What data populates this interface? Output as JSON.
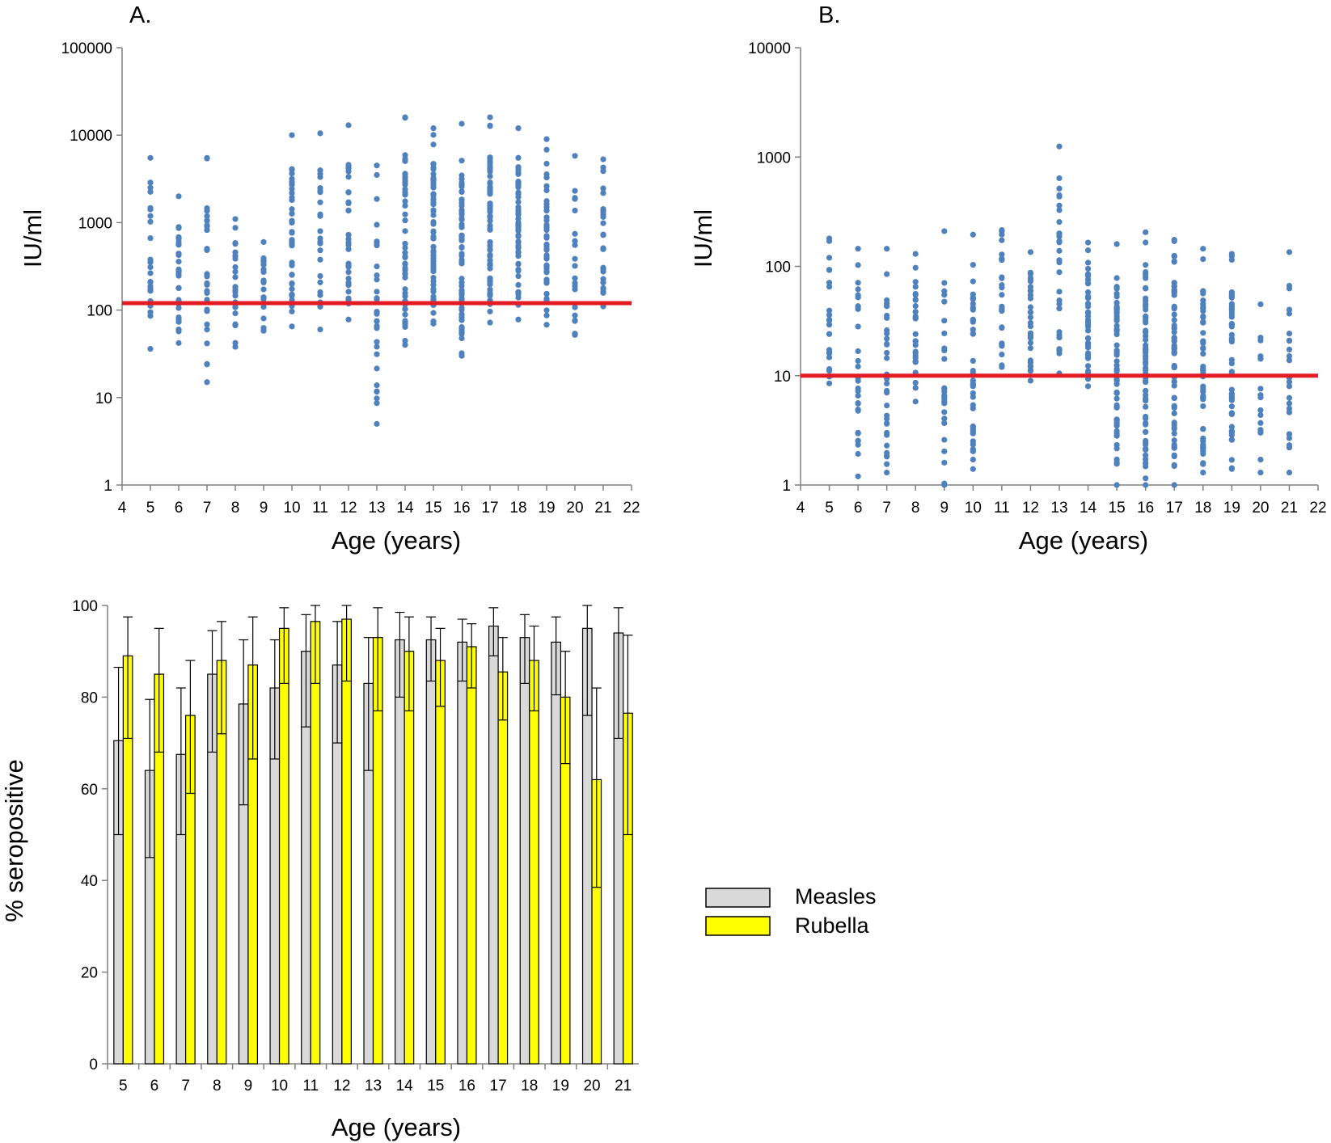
{
  "colors": {
    "point": "#4f81bd",
    "threshold": "#e31b23",
    "measles": "#d9d9d9",
    "rubella": "#ffff00",
    "axis": "#808080"
  },
  "chart_data": [
    {
      "id": "A",
      "panel_label": "A.",
      "type": "scatter",
      "y_scale": "log",
      "ylim": [
        1,
        100000
      ],
      "xlim": [
        4,
        22
      ],
      "xlabel": "Age (years)",
      "ylabel": "IU/ml",
      "x_ticks": [
        "4",
        "5",
        "6",
        "7",
        "8",
        "9",
        "10",
        "11",
        "12",
        "13",
        "14",
        "15",
        "16",
        "17",
        "18",
        "19",
        "20",
        "21",
        "22"
      ],
      "y_ticks": [
        "1",
        "10",
        "100",
        "1000",
        "10000",
        "100000"
      ],
      "threshold": 120,
      "groups": [
        {
          "age": 5,
          "min": 36,
          "max": 5500,
          "n": 24
        },
        {
          "age": 6,
          "min": 42,
          "max": 2000,
          "n": 30
        },
        {
          "age": 7,
          "min": 15,
          "max": 5500,
          "n": 32
        },
        {
          "age": 8,
          "min": 38,
          "max": 1100,
          "n": 26
        },
        {
          "age": 9,
          "min": 58,
          "max": 600,
          "n": 20
        },
        {
          "age": 10,
          "min": 65,
          "max": 10000,
          "n": 38
        },
        {
          "age": 11,
          "min": 60,
          "max": 10500,
          "n": 26
        },
        {
          "age": 12,
          "min": 78,
          "max": 13000,
          "n": 30
        },
        {
          "age": 13,
          "min": 5,
          "max": 4500,
          "n": 32
        },
        {
          "age": 14,
          "min": 40,
          "max": 16000,
          "n": 48
        },
        {
          "age": 15,
          "min": 70,
          "max": 12000,
          "n": 60
        },
        {
          "age": 16,
          "min": 30,
          "max": 13500,
          "n": 68
        },
        {
          "age": 17,
          "min": 72,
          "max": 16000,
          "n": 70
        },
        {
          "age": 18,
          "min": 78,
          "max": 12000,
          "n": 56
        },
        {
          "age": 19,
          "min": 68,
          "max": 9000,
          "n": 50
        },
        {
          "age": 20,
          "min": 52,
          "max": 5800,
          "n": 20
        },
        {
          "age": 21,
          "min": 110,
          "max": 5300,
          "n": 26
        }
      ]
    },
    {
      "id": "B",
      "panel_label": "B.",
      "type": "scatter",
      "y_scale": "log",
      "ylim": [
        1,
        10000
      ],
      "xlim": [
        4,
        22
      ],
      "xlabel": "Age (years)",
      "ylabel": "IU/ml",
      "x_ticks": [
        "4",
        "5",
        "6",
        "7",
        "8",
        "9",
        "10",
        "11",
        "12",
        "13",
        "14",
        "15",
        "16",
        "17",
        "18",
        "19",
        "20",
        "21",
        "22"
      ],
      "y_ticks": [
        "1",
        "10",
        "100",
        "1000",
        "10000"
      ],
      "threshold": 10,
      "groups": [
        {
          "age": 5,
          "min": 8.5,
          "max": 180,
          "n": 24
        },
        {
          "age": 6,
          "min": 1.2,
          "max": 145,
          "n": 30
        },
        {
          "age": 7,
          "min": 1.3,
          "max": 145,
          "n": 34
        },
        {
          "age": 8,
          "min": 5.8,
          "max": 130,
          "n": 28
        },
        {
          "age": 9,
          "min": 1.0,
          "max": 210,
          "n": 26
        },
        {
          "age": 10,
          "min": 1.4,
          "max": 195,
          "n": 40
        },
        {
          "age": 11,
          "min": 12,
          "max": 215,
          "n": 26
        },
        {
          "age": 12,
          "min": 9,
          "max": 135,
          "n": 32
        },
        {
          "age": 13,
          "min": 10.5,
          "max": 1250,
          "n": 30
        },
        {
          "age": 14,
          "min": 8,
          "max": 165,
          "n": 42
        },
        {
          "age": 15,
          "min": 1.0,
          "max": 160,
          "n": 62
        },
        {
          "age": 16,
          "min": 1.0,
          "max": 205,
          "n": 72
        },
        {
          "age": 17,
          "min": 1.0,
          "max": 175,
          "n": 70
        },
        {
          "age": 18,
          "min": 1.3,
          "max": 145,
          "n": 52
        },
        {
          "age": 19,
          "min": 1.4,
          "max": 130,
          "n": 46
        },
        {
          "age": 20,
          "min": 1.3,
          "max": 45,
          "n": 16
        },
        {
          "age": 21,
          "min": 1.3,
          "max": 135,
          "n": 24
        }
      ]
    },
    {
      "id": "C",
      "type": "bar",
      "categories": [
        "5",
        "6",
        "7",
        "8",
        "9",
        "10",
        "11",
        "12",
        "13",
        "14",
        "15",
        "16",
        "17",
        "18",
        "19",
        "20",
        "21"
      ],
      "series": [
        {
          "name": "Measles",
          "values": [
            70.5,
            64,
            67.5,
            85,
            78.5,
            82,
            90,
            87,
            83,
            92.5,
            92.5,
            92,
            95.5,
            93,
            92,
            95,
            94
          ],
          "err_low": [
            50,
            45,
            50,
            68,
            56.5,
            66.5,
            73.5,
            70,
            64,
            80,
            83.5,
            83.5,
            89,
            83,
            80.5,
            76,
            71
          ],
          "err_high": [
            86.5,
            79.5,
            82,
            94.5,
            92.5,
            92.5,
            98,
            96.5,
            93,
            98.5,
            97.5,
            97,
            99.5,
            98,
            97.5,
            100,
            99.5
          ]
        },
        {
          "name": "Rubella",
          "values": [
            89,
            85,
            76,
            88,
            87,
            95,
            96.5,
            97,
            93,
            90,
            88,
            91,
            85.5,
            88,
            80,
            62,
            76.5
          ],
          "err_low": [
            71,
            68,
            59,
            72,
            66.5,
            83,
            83,
            83.5,
            77,
            77,
            78,
            82,
            75,
            77,
            65.5,
            38.5,
            50
          ],
          "err_high": [
            97.5,
            95,
            88,
            96.5,
            97.5,
            99.5,
            100,
            100,
            99.5,
            97.5,
            95,
            96,
            93,
            95.5,
            90,
            82,
            93.5
          ]
        }
      ],
      "xlabel": "Age (years)",
      "ylabel": "% seropositive",
      "ylim": [
        0,
        100
      ],
      "y_ticks": [
        "0",
        "20",
        "40",
        "60",
        "80",
        "100"
      ],
      "legend_position": "right"
    }
  ]
}
